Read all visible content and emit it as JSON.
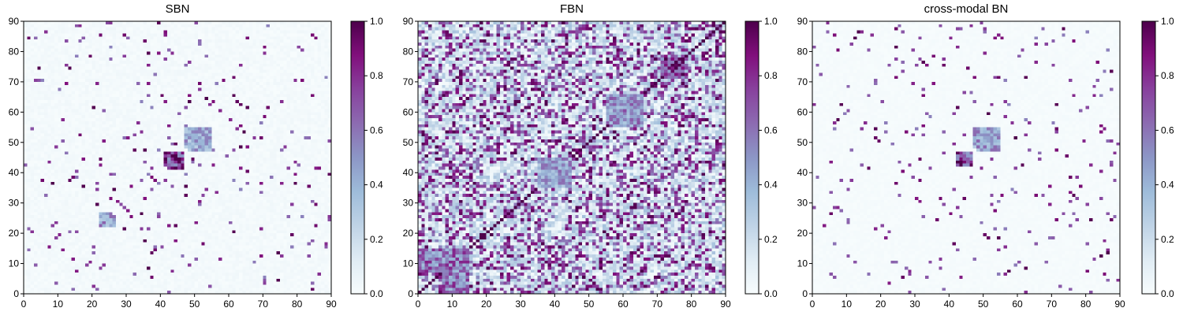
{
  "colors": {
    "colormap": [
      "#f7fcfd",
      "#e0ecf4",
      "#bfd3e6",
      "#9ebcda",
      "#8c96c6",
      "#8c6bb1",
      "#88419d",
      "#810f7c",
      "#4d004b"
    ],
    "axis": "#000000",
    "background": "#ffffff"
  },
  "chart_data": [
    {
      "type": "heatmap",
      "title": "SBN",
      "n": 90,
      "xlim": [
        0,
        90
      ],
      "ylim": [
        0,
        90
      ],
      "xticks": [
        "0",
        "10",
        "20",
        "30",
        "40",
        "50",
        "60",
        "70",
        "80",
        "90"
      ],
      "yticks": [
        "0",
        "10",
        "20",
        "30",
        "40",
        "50",
        "60",
        "70",
        "80",
        "90"
      ],
      "colorbar": {
        "range": [
          0,
          1
        ],
        "ticks": [
          "0.0",
          "0.2",
          "0.4",
          "0.6",
          "0.8",
          "1.0"
        ]
      },
      "pattern": "sparse symmetric connectivity matrix; mostly near 0 with scattered strong (0.7-1.0) cells; dense block near (42-47, 42-47) and near (48-55, 47-55)",
      "seed": 11,
      "density": 0.035,
      "noise": 0.04,
      "diagonal_value": 0.0,
      "blocks": [
        {
          "x": [
            42,
            47
          ],
          "y": [
            41,
            47
          ],
          "v": 0.85
        },
        {
          "x": [
            48,
            55
          ],
          "y": [
            47,
            55
          ],
          "v": 0.5
        },
        {
          "x": [
            22,
            26
          ],
          "y": [
            22,
            27
          ],
          "v": 0.55
        }
      ]
    },
    {
      "type": "heatmap",
      "title": "FBN",
      "n": 90,
      "xlim": [
        0,
        90
      ],
      "ylim": [
        0,
        90
      ],
      "xticks": [
        "0",
        "10",
        "20",
        "30",
        "40",
        "50",
        "60",
        "70",
        "80",
        "90"
      ],
      "yticks": [
        "0",
        "10",
        "20",
        "30",
        "40",
        "50",
        "60",
        "70",
        "80",
        "90"
      ],
      "colorbar": {
        "range": [
          0,
          1
        ],
        "ticks": [
          "0.0",
          "0.2",
          "0.4",
          "0.6",
          "0.8",
          "1.0"
        ]
      },
      "pattern": "dense symmetric functional connectivity matrix; values 0.1-1.0 throughout; strong diagonal; strong blocks near (72-78, 72-78) and (7-15, 0-15)",
      "seed": 23,
      "density": 0.3,
      "noise": 0.35,
      "diagonal_value": 1.0,
      "blocks": [
        {
          "x": [
            71,
            77
          ],
          "y": [
            72,
            78
          ],
          "v": 0.9
        },
        {
          "x": [
            7,
            15
          ],
          "y": [
            0,
            15
          ],
          "v": 0.7
        },
        {
          "x": [
            56,
            66
          ],
          "y": [
            55,
            66
          ],
          "v": 0.6
        },
        {
          "x": [
            35,
            45
          ],
          "y": [
            35,
            45
          ],
          "v": 0.55
        }
      ]
    },
    {
      "type": "heatmap",
      "title": "cross-modal BN",
      "n": 90,
      "xlim": [
        0,
        90
      ],
      "ylim": [
        0,
        90
      ],
      "xticks": [
        "0",
        "10",
        "20",
        "30",
        "40",
        "50",
        "60",
        "70",
        "80",
        "90"
      ],
      "yticks": [
        "0",
        "10",
        "20",
        "30",
        "40",
        "50",
        "60",
        "70",
        "80",
        "90"
      ],
      "colorbar": {
        "range": [
          0,
          1
        ],
        "ticks": [
          "0.0",
          "0.2",
          "0.4",
          "0.6",
          "0.8",
          "1.0"
        ]
      },
      "pattern": "sparse symmetric matrix; near 0 background with scattered strong cells (~0.8-1.0); dense block near (42-47, 42-47)",
      "seed": 37,
      "density": 0.03,
      "noise": 0.02,
      "diagonal_value": 0.0,
      "blocks": [
        {
          "x": [
            42,
            47
          ],
          "y": [
            42,
            47
          ],
          "v": 0.9
        },
        {
          "x": [
            48,
            55
          ],
          "y": [
            47,
            55
          ],
          "v": 0.55
        }
      ]
    }
  ]
}
